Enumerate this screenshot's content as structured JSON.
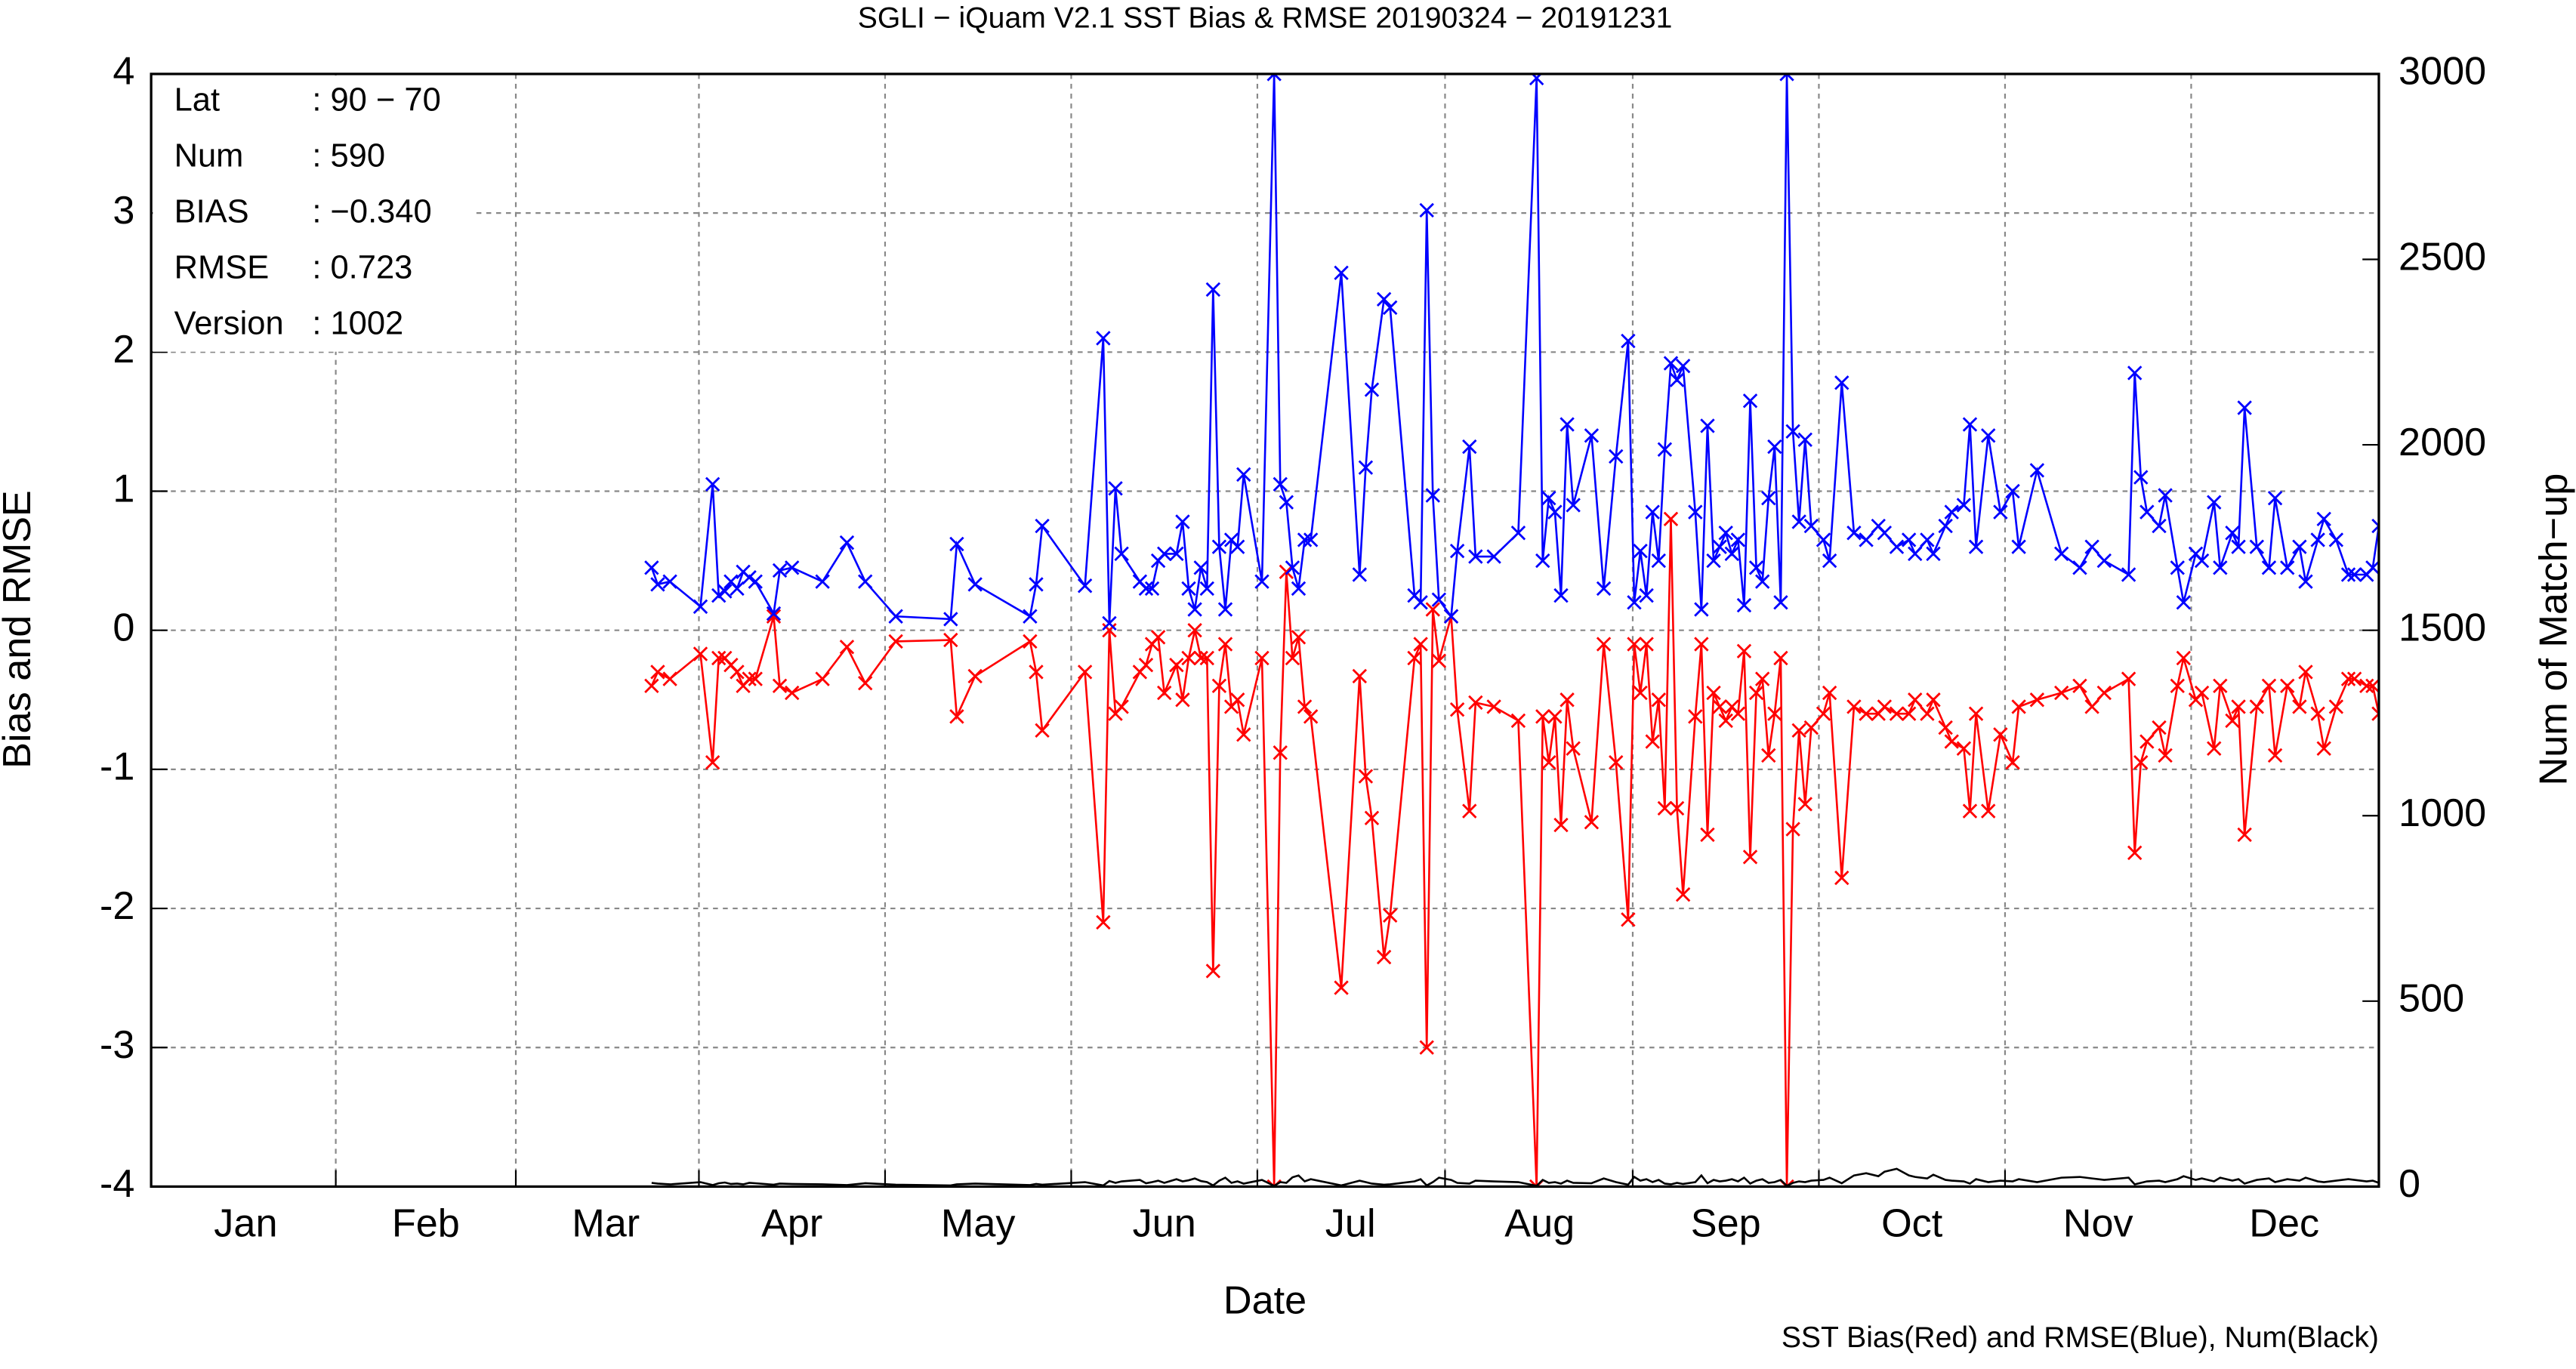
{
  "chart_data": {
    "type": "line",
    "title": "SGLI − iQuam V2.1 SST Bias & RMSE 20190324 − 20191231",
    "xlabel": "Date",
    "ylabel": "Bias and RMSE",
    "y2label": "Num of Match−up",
    "footnote": "SST Bias(Red) and RMSE(Blue), Num(Black)",
    "info": [
      {
        "label": "Lat",
        "value": ": 90 − 70"
      },
      {
        "label": "Num",
        "value": ": 590"
      },
      {
        "label": "BIAS",
        "value": ": −0.340"
      },
      {
        "label": "RMSE",
        "value": ": 0.723"
      },
      {
        "label": "Version",
        "value": ": 1002"
      }
    ],
    "xlim": [
      0,
      365
    ],
    "xticks": [
      {
        "value": 15.5,
        "label": "Jan"
      },
      {
        "value": 45,
        "label": "Feb"
      },
      {
        "value": 74.5,
        "label": "Mar"
      },
      {
        "value": 105,
        "label": "Apr"
      },
      {
        "value": 135.5,
        "label": "May"
      },
      {
        "value": 166,
        "label": "Jun"
      },
      {
        "value": 196.5,
        "label": "Jul"
      },
      {
        "value": 227.5,
        "label": "Aug"
      },
      {
        "value": 258,
        "label": "Sep"
      },
      {
        "value": 288.5,
        "label": "Oct"
      },
      {
        "value": 319,
        "label": "Nov"
      },
      {
        "value": 349.5,
        "label": "Dec"
      }
    ],
    "ylim": [
      -4,
      4
    ],
    "yticks": [
      -4,
      -3,
      -2,
      -1,
      0,
      1,
      2,
      3,
      4
    ],
    "y2lim": [
      0,
      3000
    ],
    "y2ticks": [
      0,
      500,
      1000,
      1500,
      2000,
      2500,
      3000
    ],
    "grid": true,
    "x": [
      82,
      83,
      85,
      90,
      92,
      93,
      94,
      95,
      96,
      97,
      98,
      99,
      102,
      103,
      105,
      110,
      114,
      117,
      122,
      131,
      132,
      135,
      144,
      145,
      146,
      153,
      156,
      157,
      158,
      159,
      162,
      163,
      164,
      165,
      166,
      168,
      169,
      170,
      171,
      172,
      173,
      174,
      175,
      176,
      177,
      178,
      179,
      182,
      184,
      185,
      186,
      187,
      188,
      189,
      190,
      195,
      198,
      199,
      200,
      202,
      203,
      207,
      208,
      209,
      210,
      211,
      213,
      214,
      216,
      217,
      220,
      224,
      227,
      228,
      229,
      230,
      231,
      232,
      233,
      236,
      238,
      240,
      242,
      243,
      244,
      245,
      246,
      247,
      248,
      249,
      250,
      251,
      253,
      254,
      255,
      256,
      257,
      258,
      259,
      260,
      261,
      262,
      263,
      264,
      265,
      266,
      267,
      268,
      269,
      270,
      271,
      272,
      274,
      275,
      277,
      279,
      281,
      283,
      284,
      286,
      288,
      289,
      291,
      292,
      294,
      295,
      297,
      298,
      299,
      301,
      303,
      305,
      306,
      309,
      313,
      316,
      318,
      320,
      324,
      325,
      326,
      327,
      329,
      330,
      332,
      333,
      335,
      336,
      338,
      339,
      341,
      342,
      343,
      345,
      347,
      348,
      350,
      352,
      353,
      355,
      356,
      358,
      360,
      361,
      363,
      364,
      365
    ],
    "series": [
      {
        "color": "#ff0000",
        "marker": true,
        "values": [
          -0.4,
          -0.3,
          -0.35,
          -0.17,
          -0.95,
          -0.2,
          -0.2,
          -0.25,
          -0.3,
          -0.4,
          -0.35,
          -0.35,
          0.1,
          -0.4,
          -0.45,
          -0.35,
          -0.12,
          -0.38,
          -0.08,
          -0.07,
          -0.62,
          -0.33,
          -0.08,
          -0.3,
          -0.72,
          -0.3,
          -2.1,
          0.0,
          -0.6,
          -0.55,
          -0.3,
          -0.25,
          -0.1,
          -0.05,
          -0.45,
          -0.25,
          -0.5,
          -0.2,
          0.0,
          -0.2,
          -0.2,
          -2.45,
          -0.4,
          -0.1,
          -0.55,
          -0.5,
          -0.75,
          -0.2,
          -4.0,
          -0.88,
          0.42,
          -0.2,
          -0.05,
          -0.55,
          -0.62,
          -2.57,
          -0.33,
          -1.05,
          -1.35,
          -2.35,
          -2.05,
          -0.2,
          -0.1,
          -3.0,
          0.15,
          -0.22,
          0.1,
          -0.57,
          -1.3,
          -0.52,
          -0.55,
          -0.65,
          -4.0,
          -0.62,
          -0.95,
          -0.62,
          -1.4,
          -0.5,
          -0.85,
          -1.38,
          -0.1,
          -0.95,
          -2.08,
          -0.1,
          -0.45,
          -0.1,
          -0.8,
          -0.5,
          -1.28,
          0.8,
          -1.28,
          -1.9,
          -0.62,
          -0.1,
          -1.47,
          -0.45,
          -0.55,
          -0.65,
          -0.55,
          -0.6,
          -0.15,
          -1.63,
          -0.45,
          -0.35,
          -0.9,
          -0.6,
          -0.2,
          -4.0,
          -1.43,
          -0.72,
          -1.25,
          -0.7,
          -0.6,
          -0.45,
          -1.78,
          -0.55,
          -0.6,
          -0.6,
          -0.55,
          -0.6,
          -0.6,
          -0.5,
          -0.6,
          -0.5,
          -0.7,
          -0.8,
          -0.85,
          -1.3,
          -0.6,
          -1.3,
          -0.75,
          -0.95,
          -0.55,
          -0.5,
          -0.45,
          -0.4,
          -0.55,
          -0.45,
          -0.35,
          -1.6,
          -0.95,
          -0.8,
          -0.7,
          -0.9,
          -0.4,
          -0.2,
          -0.5,
          -0.45,
          -0.85,
          -0.4,
          -0.65,
          -0.55,
          -1.47,
          -0.55,
          -0.4,
          -0.9,
          -0.4,
          -0.55,
          -0.3,
          -0.6,
          -0.85,
          -0.55,
          -0.35,
          -0.35,
          -0.4,
          -0.4,
          -0.6
        ]
      },
      {
        "color": "#0000ff",
        "marker": true,
        "values": [
          0.45,
          0.33,
          0.35,
          0.17,
          1.05,
          0.25,
          0.28,
          0.35,
          0.3,
          0.42,
          0.38,
          0.35,
          0.12,
          0.43,
          0.45,
          0.35,
          0.63,
          0.35,
          0.1,
          0.08,
          0.62,
          0.33,
          0.1,
          0.33,
          0.75,
          0.32,
          2.1,
          0.05,
          1.02,
          0.55,
          0.35,
          0.3,
          0.3,
          0.5,
          0.55,
          0.55,
          0.78,
          0.3,
          0.15,
          0.45,
          0.3,
          2.45,
          0.6,
          0.15,
          0.65,
          0.6,
          1.12,
          0.35,
          4.0,
          1.05,
          0.92,
          0.45,
          0.3,
          0.65,
          0.65,
          2.57,
          0.4,
          1.17,
          1.73,
          2.38,
          2.32,
          0.25,
          0.2,
          3.02,
          0.97,
          0.22,
          0.1,
          0.57,
          1.32,
          0.53,
          0.53,
          0.7,
          3.97,
          0.5,
          0.95,
          0.85,
          0.25,
          1.48,
          0.9,
          1.4,
          0.3,
          1.25,
          2.08,
          0.2,
          0.57,
          0.25,
          0.85,
          0.5,
          1.3,
          1.92,
          1.8,
          1.9,
          0.85,
          0.15,
          1.47,
          0.5,
          0.6,
          0.7,
          0.55,
          0.65,
          0.18,
          1.65,
          0.45,
          0.35,
          0.95,
          1.32,
          0.2,
          4.0,
          1.43,
          0.78,
          1.37,
          0.75,
          0.65,
          0.5,
          1.78,
          0.7,
          0.65,
          0.75,
          0.7,
          0.6,
          0.65,
          0.55,
          0.65,
          0.55,
          0.75,
          0.85,
          0.9,
          1.48,
          0.6,
          1.4,
          0.85,
          1.0,
          0.6,
          1.15,
          0.55,
          0.45,
          0.6,
          0.5,
          0.4,
          1.85,
          1.1,
          0.85,
          0.75,
          0.97,
          0.45,
          0.2,
          0.55,
          0.5,
          0.92,
          0.45,
          0.7,
          0.6,
          1.6,
          0.6,
          0.45,
          0.95,
          0.45,
          0.6,
          0.35,
          0.65,
          0.8,
          0.65,
          0.4,
          0.4,
          0.4,
          0.45,
          0.75
        ]
      },
      {
        "color": "#000000",
        "marker": false,
        "axis": "y2",
        "values": [
          10,
          8,
          6,
          12,
          4,
          9,
          11,
          7,
          8,
          6,
          10,
          9,
          5,
          8,
          7,
          6,
          4,
          9,
          5,
          3,
          6,
          8,
          4,
          7,
          5,
          12,
          3,
          15,
          10,
          14,
          18,
          9,
          12,
          16,
          10,
          20,
          14,
          17,
          22,
          15,
          12,
          3,
          16,
          24,
          10,
          14,
          8,
          18,
          2,
          12,
          10,
          25,
          30,
          14,
          20,
          3,
          16,
          12,
          8,
          5,
          6,
          14,
          20,
          3,
          12,
          24,
          18,
          10,
          8,
          16,
          14,
          12,
          2,
          18,
          10,
          12,
          8,
          16,
          10,
          9,
          22,
          12,
          5,
          26,
          16,
          20,
          12,
          18,
          8,
          6,
          10,
          7,
          12,
          30,
          9,
          18,
          14,
          16,
          20,
          14,
          24,
          8,
          16,
          20,
          10,
          12,
          18,
          2,
          10,
          14,
          12,
          16,
          18,
          24,
          9,
          30,
          36,
          28,
          40,
          48,
          30,
          26,
          22,
          32,
          18,
          16,
          14,
          8,
          20,
          12,
          16,
          14,
          20,
          12,
          24,
          26,
          22,
          18,
          24,
          6,
          10,
          14,
          16,
          12,
          20,
          28,
          18,
          22,
          14,
          24,
          16,
          20,
          8,
          18,
          22,
          12,
          20,
          16,
          24,
          14,
          12,
          16,
          20,
          18,
          14,
          16,
          10
        ]
      }
    ]
  }
}
